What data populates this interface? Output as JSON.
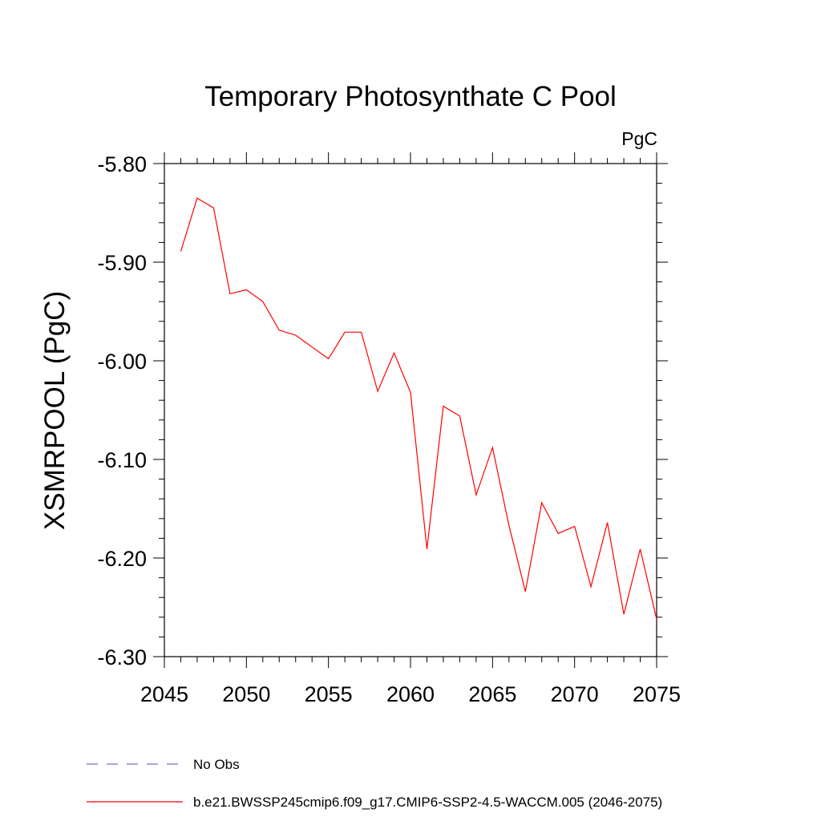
{
  "chart_data": {
    "type": "line",
    "title": "Temporary Photosynthate C Pool",
    "units": "PgC",
    "ylabel": "XSMRPOOL  (PgC)",
    "xlabel": "",
    "xlim": [
      2045,
      2075
    ],
    "ylim": [
      -6.3,
      -5.8
    ],
    "x_ticks": [
      2045,
      2050,
      2055,
      2060,
      2065,
      2070,
      2075
    ],
    "x_tick_labels": [
      "2045",
      "2050",
      "2055",
      "2060",
      "2065",
      "2070",
      "2075"
    ],
    "y_ticks": [
      -6.3,
      -6.2,
      -6.1,
      -6.0,
      -5.9,
      -5.8
    ],
    "y_tick_labels": [
      "-6.30",
      "-6.20",
      "-6.10",
      "-6.00",
      "-5.90",
      "-5.80"
    ],
    "grid": false,
    "legend_position": "bottom",
    "series": [
      {
        "name": "b.e21.BWSSP245cmip6.f09_g17.CMIP6-SSP2-4.5-WACCM.005 (2046-2075)",
        "color": "#ff0000",
        "x": [
          2046,
          2047,
          2048,
          2049,
          2050,
          2051,
          2052,
          2053,
          2054,
          2055,
          2056,
          2057,
          2058,
          2059,
          2060,
          2061,
          2062,
          2063,
          2064,
          2065,
          2066,
          2067,
          2068,
          2069,
          2070,
          2071,
          2072,
          2073,
          2074,
          2075
        ],
        "y": [
          -5.889,
          -5.835,
          -5.845,
          -5.932,
          -5.928,
          -5.94,
          -5.969,
          -5.974,
          -5.986,
          -5.998,
          -5.971,
          -5.971,
          -6.031,
          -5.992,
          -6.032,
          -6.191,
          -6.046,
          -6.056,
          -6.136,
          -6.088,
          -6.167,
          -6.234,
          -6.144,
          -6.175,
          -6.168,
          -6.229,
          -6.164,
          -6.257,
          -6.191,
          -6.262
        ]
      }
    ],
    "legend": [
      {
        "label": "No Obs",
        "color": "#7b68c8",
        "style": "dashed"
      },
      {
        "label": "b.e21.BWSSP245cmip6.f09_g17.CMIP6-SSP2-4.5-WACCM.005 (2046-2075)",
        "color": "#ff0000",
        "style": "solid"
      }
    ]
  }
}
